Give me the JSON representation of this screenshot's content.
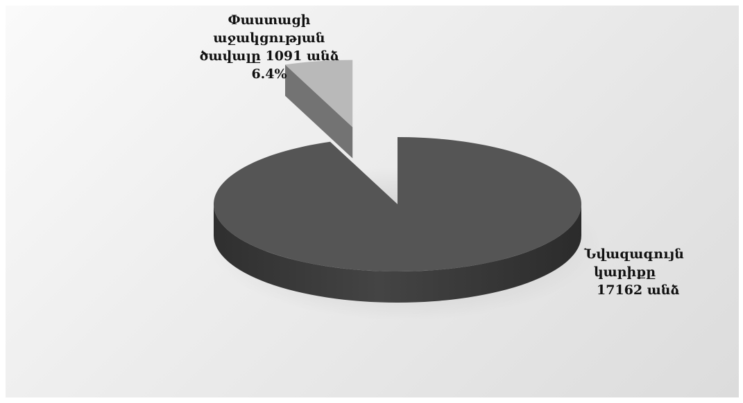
{
  "chart_data": {
    "type": "pie",
    "title": "",
    "slices": [
      {
        "value": 17162,
        "label_lines": [
          "Նվազագույն",
          "կարիքը",
          "17162 անձ"
        ],
        "color": "#555555"
      },
      {
        "value": 1091,
        "percent_label": "6.4%",
        "label_lines": [
          "Փաստացի",
          "աջակցության",
          "ծավալը 1091 անձ",
          "6.4%"
        ],
        "color": "#b9b9b9",
        "exploded": true
      }
    ],
    "three_d": true,
    "legend": "none"
  }
}
